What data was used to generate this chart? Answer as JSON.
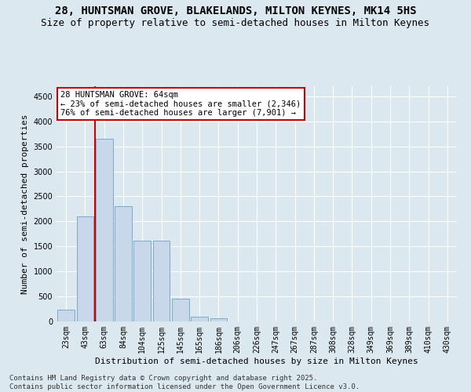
{
  "title1": "28, HUNTSMAN GROVE, BLAKELANDS, MILTON KEYNES, MK14 5HS",
  "title2": "Size of property relative to semi-detached houses in Milton Keynes",
  "xlabel": "Distribution of semi-detached houses by size in Milton Keynes",
  "ylabel": "Number of semi-detached properties",
  "categories": [
    "23sqm",
    "43sqm",
    "63sqm",
    "84sqm",
    "104sqm",
    "125sqm",
    "145sqm",
    "165sqm",
    "186sqm",
    "206sqm",
    "226sqm",
    "247sqm",
    "267sqm",
    "287sqm",
    "308sqm",
    "328sqm",
    "349sqm",
    "369sqm",
    "389sqm",
    "410sqm",
    "430sqm"
  ],
  "values": [
    230,
    2100,
    3650,
    2300,
    1620,
    1620,
    450,
    100,
    55,
    0,
    0,
    0,
    0,
    0,
    0,
    0,
    0,
    0,
    0,
    0,
    0
  ],
  "bar_color": "#c8d8ea",
  "bar_edge_color": "#7baac8",
  "vline_x": 1.5,
  "vline_color": "#cc0000",
  "annotation_text": "28 HUNTSMAN GROVE: 64sqm\n← 23% of semi-detached houses are smaller (2,346)\n76% of semi-detached houses are larger (7,901) →",
  "annotation_box_color": "#ffffff",
  "annotation_box_edge": "#cc0000",
  "ylim": [
    0,
    4700
  ],
  "yticks": [
    0,
    500,
    1000,
    1500,
    2000,
    2500,
    3000,
    3500,
    4000,
    4500
  ],
  "background_color": "#dce8f0",
  "grid_color": "#ffffff",
  "footnote": "Contains HM Land Registry data © Crown copyright and database right 2025.\nContains public sector information licensed under the Open Government Licence v3.0.",
  "title_fontsize": 10,
  "subtitle_fontsize": 9,
  "annotation_fontsize": 7.5,
  "footnote_fontsize": 6.5,
  "ylabel_fontsize": 8,
  "xlabel_fontsize": 8,
  "tick_fontsize": 7
}
